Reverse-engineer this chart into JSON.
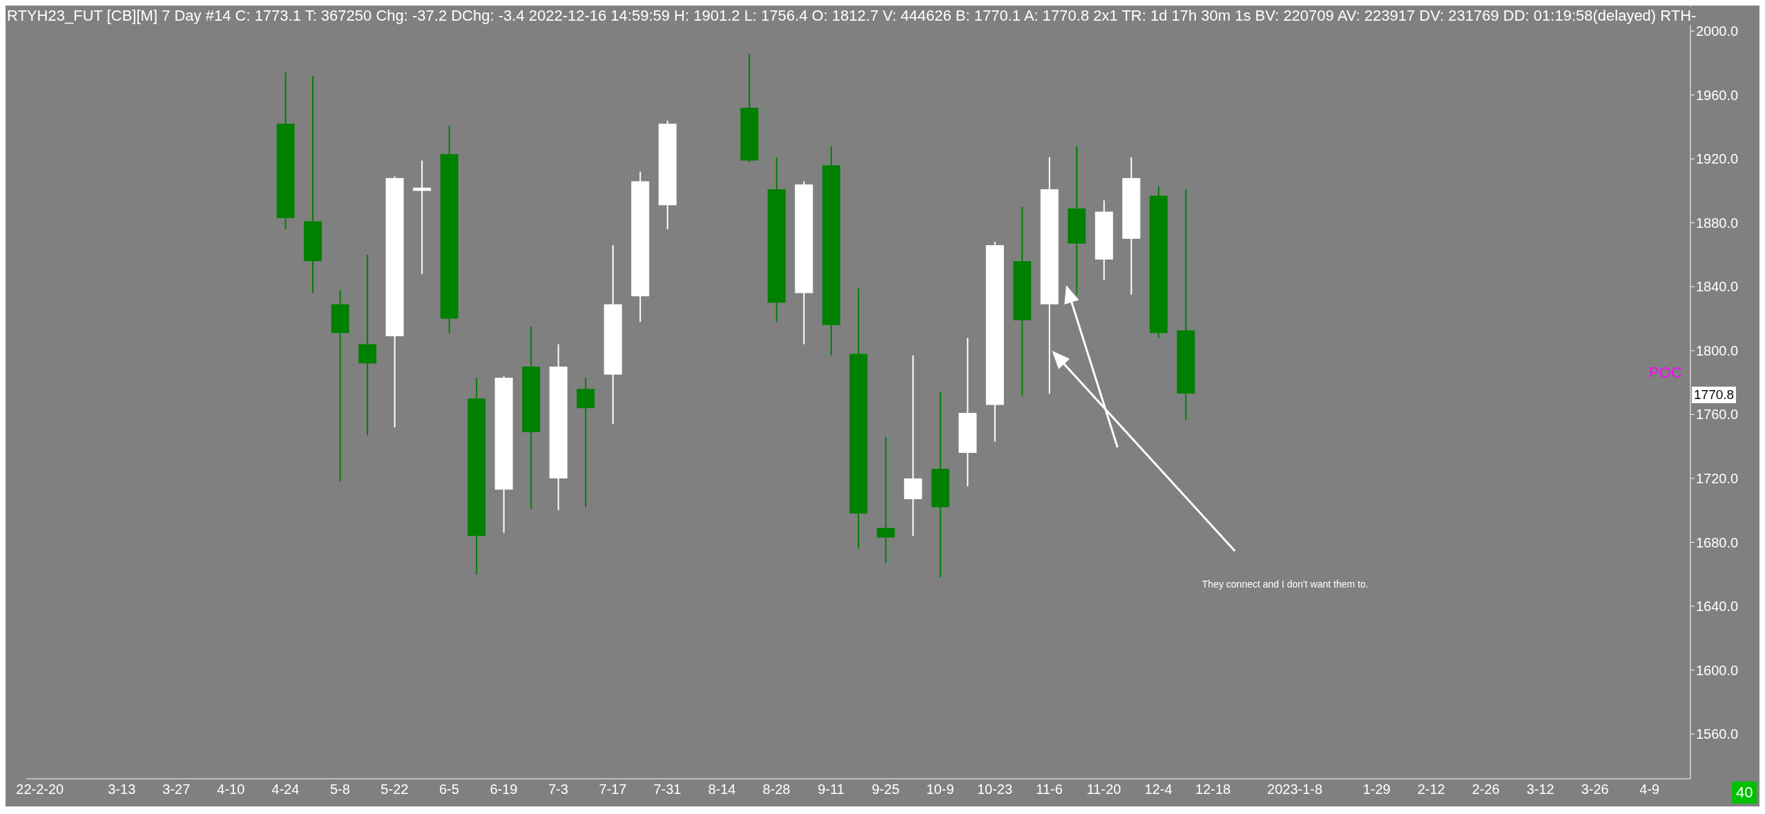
{
  "chart_data": {
    "type": "candlestick",
    "title": "RTYH23_FUT [CB][M]  7 Day   #14 C: 1773.1 T: 367250 Chg: -37.2 DChg: -3.4 2022-12-16 14:59:59 H: 1901.2 L: 1756.4 O: 1812.7 V: 444626 B: 1770.1 A: 1770.8 2x1 TR: 1d 17h 30m 1s BV: 220709 AV: 223917 DV: 231769 DD: 01:19:58(delayed) RTH-",
    "categories": [
      "22-2-20",
      null,
      null,
      "3-13",
      null,
      "3-27",
      null,
      "4-10",
      null,
      "4-24",
      null,
      "5-8",
      null,
      "5-22",
      null,
      "6-5",
      null,
      "6-19",
      null,
      "7-3",
      null,
      "7-17",
      null,
      "7-31",
      null,
      "8-14",
      null,
      "8-28",
      null,
      "9-11",
      null,
      "9-25",
      null,
      "10-9",
      null,
      "10-23",
      null,
      "11-6",
      null,
      "11-20",
      null,
      "12-4",
      null,
      "12-18",
      null,
      null,
      "2023-1-8",
      null,
      null,
      "1-29",
      null,
      "2-12",
      null,
      "2-26",
      null,
      "3-12",
      null,
      "3-26",
      null,
      "4-9",
      null
    ],
    "ohlc": [
      null,
      null,
      null,
      null,
      null,
      null,
      null,
      null,
      null,
      [
        1942,
        1974,
        1876,
        1883
      ],
      [
        1881,
        1972,
        1836,
        1856
      ],
      [
        1829,
        1838,
        1718,
        1811
      ],
      [
        1804,
        1860,
        1747,
        1792
      ],
      [
        1809,
        1909,
        1752,
        1908
      ],
      [
        1900,
        1919,
        1848,
        1902
      ],
      [
        1923,
        1941,
        1811,
        1820
      ],
      [
        1770,
        1783,
        1660,
        1684
      ],
      [
        1713,
        1784,
        1686,
        1783
      ],
      [
        1790,
        1815,
        1701,
        1749
      ],
      [
        1720,
        1804,
        1700,
        1790
      ],
      [
        1776,
        1783,
        1702,
        1764
      ],
      [
        1785,
        1866,
        1754,
        1829
      ],
      [
        1834,
        1912,
        1818,
        1906
      ],
      [
        1891,
        1944,
        1876,
        1942
      ],
      null,
      null,
      [
        1952,
        1986,
        1918,
        1919
      ],
      [
        1901,
        1921,
        1818,
        1830
      ],
      [
        1836,
        1906,
        1804,
        1904
      ],
      [
        1916,
        1928,
        1797,
        1816
      ],
      [
        1798,
        1839,
        1676,
        1698
      ],
      [
        1689,
        1746,
        1667,
        1683
      ],
      [
        1707,
        1797,
        1684,
        1720
      ],
      [
        1726,
        1774,
        1658,
        1702
      ],
      [
        1736,
        1808,
        1715,
        1761
      ],
      [
        1766,
        1868,
        1743,
        1866
      ],
      [
        1856,
        1890,
        1772,
        1819
      ],
      [
        1829,
        1921,
        1773,
        1901
      ],
      [
        1889,
        1928,
        1835,
        1867
      ],
      [
        1857,
        1894,
        1844,
        1887
      ],
      [
        1870,
        1921,
        1835,
        1908
      ],
      [
        1897,
        1903,
        1808,
        1811
      ],
      [
        1812.7,
        1901.2,
        1756.4,
        1773.1
      ],
      null,
      null,
      null,
      null,
      null,
      null,
      null,
      null,
      null,
      null,
      null,
      null,
      null,
      null,
      null,
      null,
      null,
      null
    ],
    "colors": [
      null,
      null,
      null,
      null,
      null,
      null,
      null,
      null,
      null,
      "#008000",
      "#008000",
      "#008000",
      "#008000",
      "#ffffff",
      "#ffffff",
      "#008000",
      "#008000",
      "#ffffff",
      "#008000",
      "#ffffff",
      "#008000",
      "#ffffff",
      "#ffffff",
      "#ffffff",
      null,
      null,
      "#008000",
      "#008000",
      "#ffffff",
      "#008000",
      "#008000",
      "#008000",
      "#ffffff",
      "#008000",
      "#ffffff",
      "#ffffff",
      "#008000",
      "#ffffff",
      "#008000",
      "#ffffff",
      "#ffffff",
      "#008000",
      "#008000",
      null,
      null,
      null,
      null,
      null,
      null,
      null,
      null,
      null,
      null,
      null,
      null,
      null,
      null,
      null,
      null,
      null,
      null
    ],
    "ylim": [
      1532,
      2016
    ],
    "yticks": [
      {
        "value": 1560,
        "label": "1560.0"
      },
      {
        "value": 1600,
        "label": "1600.0"
      },
      {
        "value": 1640,
        "label": "1640.0"
      },
      {
        "value": 1680,
        "label": "1680.0"
      },
      {
        "value": 1720,
        "label": "1720.0"
      },
      {
        "value": 1760,
        "label": "1760.0"
      },
      {
        "value": 1800,
        "label": "1800.0"
      },
      {
        "value": 1840,
        "label": "1840.0"
      },
      {
        "value": 1880,
        "label": "1880.0"
      },
      {
        "value": 1920,
        "label": "1920.0"
      },
      {
        "value": 1960,
        "label": "1960.0"
      },
      {
        "value": 2000,
        "label": "2000.0"
      }
    ],
    "annotations": [
      "1770.8",
      "POC",
      "They connect and I don't want them to.",
      "40"
    ]
  }
}
